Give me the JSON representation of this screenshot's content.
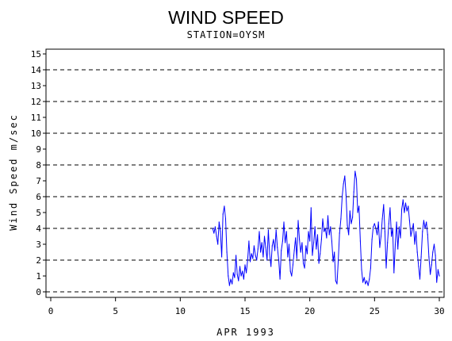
{
  "chart_data": {
    "type": "line",
    "title": "WIND SPEED",
    "subtitle": "STATION=OYSM",
    "xlabel": "APR 1993",
    "ylabel": "Wind Speed m/sec",
    "xlim": [
      0,
      30
    ],
    "ylim": [
      0,
      15
    ],
    "xticks": [
      0,
      5,
      10,
      15,
      20,
      25,
      30
    ],
    "yticks": [
      0,
      1,
      2,
      3,
      4,
      5,
      6,
      7,
      8,
      9,
      10,
      11,
      12,
      13,
      14,
      15
    ],
    "reference_lines": [
      0,
      2,
      4,
      6,
      8,
      10,
      12,
      14
    ],
    "colors": {
      "series": "#0000ff",
      "axis": "#000000"
    },
    "series": [
      {
        "x": [
          12.5,
          12.6,
          12.7,
          12.8,
          12.9,
          13.0,
          13.1,
          13.2,
          13.3,
          13.4,
          13.5,
          13.6,
          13.7,
          13.8,
          13.9,
          14.0,
          14.1,
          14.2,
          14.3,
          14.4,
          14.5,
          14.6,
          14.7,
          14.8,
          14.9,
          15.0,
          15.1,
          15.2,
          15.3,
          15.4,
          15.5,
          15.6,
          15.7,
          15.8,
          15.9,
          16.0,
          16.1,
          16.2,
          16.3,
          16.4,
          16.5,
          16.6,
          16.7,
          16.8,
          16.9,
          17.0,
          17.1,
          17.2,
          17.3,
          17.4,
          17.5,
          17.6,
          17.7,
          17.8,
          17.9,
          18.0,
          18.1,
          18.2,
          18.3,
          18.4,
          18.5,
          18.6,
          18.7,
          18.8,
          18.9,
          19.0,
          19.1,
          19.2,
          19.3,
          19.4,
          19.5,
          19.6,
          19.7,
          19.8,
          19.9,
          20.0,
          20.1,
          20.2,
          20.3,
          20.4,
          20.5,
          20.6,
          20.7,
          20.8,
          20.9,
          21.0,
          21.1,
          21.2,
          21.3,
          21.4,
          21.5,
          21.6,
          21.7,
          21.8,
          21.9,
          22.0,
          22.1,
          22.2,
          22.3,
          22.4,
          22.5,
          22.6,
          22.7,
          22.8,
          22.9,
          23.0,
          23.1,
          23.2,
          23.3,
          23.4,
          23.5,
          23.6,
          23.7,
          23.8,
          23.9,
          24.0,
          24.1,
          24.2,
          24.3,
          24.4,
          24.5,
          24.6,
          24.7,
          24.8,
          24.9,
          25.0,
          25.1,
          25.2,
          25.3,
          25.4,
          25.5,
          25.6,
          25.7,
          25.8,
          25.9,
          26.0,
          26.1,
          26.2,
          26.3,
          26.4,
          26.5,
          26.6,
          26.7,
          26.8,
          26.9,
          27.0,
          27.1,
          27.2,
          27.3,
          27.4,
          27.5,
          27.6,
          27.7,
          27.8,
          27.9,
          28.0,
          28.1,
          28.2,
          28.3,
          28.4,
          28.5,
          28.6,
          28.7,
          28.8,
          28.9,
          29.0,
          29.1,
          29.2,
          29.3,
          29.4,
          29.5,
          29.6,
          29.7,
          29.8,
          29.9,
          30.0
        ],
        "y": [
          4.0,
          3.7,
          4.1,
          3.5,
          3.0,
          4.4,
          3.8,
          2.2,
          4.9,
          5.4,
          4.6,
          2.5,
          1.0,
          0.4,
          0.8,
          0.5,
          1.2,
          0.9,
          2.3,
          1.1,
          0.7,
          1.6,
          1.0,
          1.3,
          0.8,
          1.7,
          1.2,
          2.0,
          3.2,
          1.9,
          2.4,
          2.1,
          2.9,
          2.3,
          2.0,
          2.7,
          3.8,
          2.5,
          3.1,
          2.2,
          3.5,
          2.8,
          2.0,
          3.9,
          2.4,
          1.6,
          2.9,
          3.3,
          2.6,
          3.9,
          2.8,
          2.0,
          0.8,
          2.6,
          3.2,
          4.4,
          3.1,
          3.8,
          2.2,
          3.0,
          1.3,
          1.0,
          1.7,
          2.6,
          3.4,
          2.1,
          4.5,
          3.3,
          2.5,
          3.1,
          1.8,
          1.5,
          2.9,
          2.4,
          3.8,
          3.2,
          5.3,
          2.3,
          3.1,
          4.1,
          2.7,
          3.6,
          1.8,
          2.4,
          3.3,
          4.6,
          3.8,
          4.0,
          3.4,
          4.8,
          3.6,
          4.1,
          3.2,
          1.9,
          2.5,
          0.7,
          0.5,
          2.0,
          3.7,
          4.6,
          6.0,
          6.8,
          7.3,
          6.1,
          4.2,
          3.6,
          5.1,
          4.3,
          4.7,
          6.3,
          7.6,
          7.1,
          5.0,
          5.4,
          3.2,
          1.4,
          0.6,
          0.9,
          0.5,
          0.7,
          0.4,
          0.8,
          1.5,
          3.3,
          4.1,
          4.3,
          4.0,
          3.6,
          4.4,
          2.8,
          3.5,
          4.6,
          5.5,
          3.8,
          1.5,
          3.1,
          4.3,
          5.3,
          3.5,
          4.0,
          1.2,
          3.0,
          4.4,
          2.7,
          4.1,
          3.4,
          5.2,
          5.8,
          5.0,
          5.6,
          5.1,
          5.4,
          4.5,
          3.5,
          3.9,
          4.3,
          3.0,
          3.8,
          2.5,
          1.6,
          0.8,
          2.2,
          3.8,
          4.5,
          4.0,
          4.4,
          3.6,
          2.2,
          1.1,
          1.7,
          2.5,
          3.0,
          2.3,
          0.6,
          1.4,
          1.0
        ]
      }
    ]
  }
}
